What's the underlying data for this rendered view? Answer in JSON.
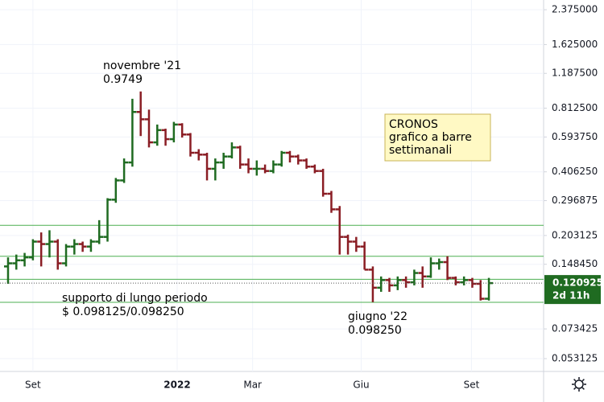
{
  "chart_data": {
    "type": "ohlc",
    "log_scale": true,
    "grid": true,
    "up_color": "#1f6b21",
    "down_color": "#8a1d24",
    "line_color": "#4caf50",
    "categories": [
      null,
      null,
      null,
      null,
      null,
      null,
      null,
      null,
      null,
      null,
      null,
      null,
      null,
      null,
      null,
      null,
      null,
      null,
      null,
      null,
      null,
      null,
      null,
      null,
      null,
      null,
      null,
      null,
      null,
      null,
      null,
      null,
      null,
      null,
      null,
      null,
      null,
      null,
      null,
      null,
      null,
      null,
      null,
      null,
      null,
      null,
      null,
      null,
      null,
      null,
      null,
      null,
      null,
      null,
      null,
      null,
      null,
      null,
      null
    ],
    "open": [
      0.145,
      0.15,
      0.155,
      0.16,
      0.19,
      0.185,
      0.19,
      0.15,
      0.18,
      0.185,
      0.18,
      0.19,
      0.2,
      0.3,
      0.37,
      0.45,
      0.78,
      0.72,
      0.56,
      0.64,
      0.58,
      0.68,
      0.61,
      0.5,
      0.49,
      0.42,
      0.45,
      0.48,
      0.53,
      0.44,
      0.42,
      0.42,
      0.41,
      0.44,
      0.5,
      0.48,
      0.46,
      0.43,
      0.41,
      0.32,
      0.27,
      0.2,
      0.19,
      0.18,
      0.14,
      0.115,
      0.125,
      0.118,
      0.125,
      0.122,
      0.135,
      0.13,
      0.15,
      0.152,
      0.128,
      0.122,
      0.125,
      0.12,
      0.102
    ],
    "high": [
      0.16,
      0.165,
      0.168,
      0.195,
      0.21,
      0.215,
      0.195,
      0.185,
      0.195,
      0.19,
      0.195,
      0.24,
      0.305,
      0.38,
      0.47,
      0.9,
      0.9749,
      0.8,
      0.68,
      0.65,
      0.7,
      0.69,
      0.62,
      0.52,
      0.5,
      0.47,
      0.5,
      0.56,
      0.54,
      0.47,
      0.46,
      0.44,
      0.46,
      0.51,
      0.51,
      0.49,
      0.47,
      0.44,
      0.42,
      0.33,
      0.28,
      0.205,
      0.2,
      0.19,
      0.145,
      0.13,
      0.128,
      0.13,
      0.13,
      0.14,
      0.145,
      0.16,
      0.158,
      0.162,
      0.13,
      0.13,
      0.128,
      0.125,
      0.128
    ],
    "low": [
      0.12,
      0.14,
      0.145,
      0.155,
      0.145,
      0.16,
      0.14,
      0.145,
      0.165,
      0.17,
      0.17,
      0.185,
      0.19,
      0.29,
      0.36,
      0.43,
      0.6,
      0.53,
      0.54,
      0.54,
      0.56,
      0.59,
      0.48,
      0.46,
      0.37,
      0.37,
      0.42,
      0.47,
      0.42,
      0.4,
      0.39,
      0.4,
      0.4,
      0.43,
      0.45,
      0.44,
      0.42,
      0.4,
      0.31,
      0.26,
      0.165,
      0.165,
      0.17,
      0.14,
      0.09825,
      0.11,
      0.11,
      0.112,
      0.115,
      0.118,
      0.115,
      0.128,
      0.14,
      0.125,
      0.118,
      0.118,
      0.115,
      0.1,
      0.1
    ],
    "close": [
      0.15,
      0.155,
      0.16,
      0.19,
      0.185,
      0.19,
      0.15,
      0.18,
      0.185,
      0.18,
      0.19,
      0.2,
      0.3,
      0.37,
      0.45,
      0.78,
      0.72,
      0.56,
      0.64,
      0.58,
      0.68,
      0.61,
      0.5,
      0.49,
      0.42,
      0.45,
      0.48,
      0.53,
      0.44,
      0.42,
      0.42,
      0.41,
      0.44,
      0.5,
      0.48,
      0.46,
      0.43,
      0.41,
      0.32,
      0.27,
      0.2,
      0.19,
      0.18,
      0.14,
      0.115,
      0.125,
      0.118,
      0.125,
      0.122,
      0.135,
      0.13,
      0.15,
      0.152,
      0.128,
      0.122,
      0.125,
      0.12,
      0.102,
      0.120925
    ],
    "xlim": [
      -0.97,
      64.6
    ],
    "xticks": [
      {
        "value": 3.0,
        "label": "Set"
      },
      {
        "value": 20.4,
        "label": "2022"
      },
      {
        "value": 29.5,
        "label": "Mar"
      },
      {
        "value": 42.6,
        "label": "Giu"
      },
      {
        "value": 55.9,
        "label": "Set"
      }
    ],
    "ylim": [
      0.0462,
      2.64
    ],
    "yticks": [
      {
        "value": 2.375,
        "label": "2.375000"
      },
      {
        "value": 1.625,
        "label": "1.625000"
      },
      {
        "value": 1.1875,
        "label": "1.187500"
      },
      {
        "value": 0.8125,
        "label": "0.812500"
      },
      {
        "value": 0.59375,
        "label": "0.593750"
      },
      {
        "value": 0.40625,
        "label": "0.406250"
      },
      {
        "value": 0.296875,
        "label": "0.296875"
      },
      {
        "value": 0.203125,
        "label": "0.203125"
      },
      {
        "value": 0.14845,
        "label": "0.148450"
      },
      {
        "value": 0.073425,
        "label": "0.073425"
      },
      {
        "value": 0.053125,
        "label": "0.053125"
      }
    ],
    "hlines": [
      0.227,
      0.162,
      0.126,
      0.098125
    ],
    "countdown": "2d 11h",
    "annotations": [
      {
        "lines": [
          "novembre '21",
          "0.9749"
        ]
      },
      {
        "lines": [
          "supporto di lungo periodo",
          "$ 0.098125/0.098250"
        ]
      },
      {
        "lines": [
          "giugno '22",
          "0.098250"
        ]
      }
    ],
    "note": {
      "lines": [
        "CRONOS",
        "grafico a barre",
        "settimanali"
      ]
    }
  }
}
